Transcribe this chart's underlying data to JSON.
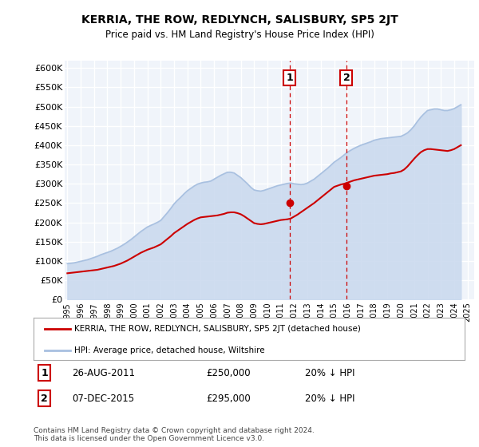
{
  "title": "KERRIA, THE ROW, REDLYNCH, SALISBURY, SP5 2JT",
  "subtitle": "Price paid vs. HM Land Registry's House Price Index (HPI)",
  "ylim": [
    0,
    620000
  ],
  "yticks": [
    0,
    50000,
    100000,
    150000,
    200000,
    250000,
    300000,
    350000,
    400000,
    450000,
    500000,
    550000,
    600000
  ],
  "ytick_labels": [
    "£0",
    "£50K",
    "£100K",
    "£150K",
    "£200K",
    "£250K",
    "£300K",
    "£350K",
    "£400K",
    "£450K",
    "£500K",
    "£550K",
    "£600K"
  ],
  "xlim_start": 1994.8,
  "xlim_end": 2025.5,
  "background_color": "#ffffff",
  "plot_bg_color": "#f0f4fa",
  "grid_color": "#ffffff",
  "hpi_fill_color": "#c8d8ee",
  "hpi_line_color": "#a8c0e0",
  "price_color": "#cc0000",
  "marker1_year": 2011.65,
  "marker2_year": 2015.92,
  "marker1_price": 250000,
  "marker2_price": 295000,
  "marker_dashed_color": "#cc0000",
  "legend_line1": "KERRIA, THE ROW, REDLYNCH, SALISBURY, SP5 2JT (detached house)",
  "legend_line2": "HPI: Average price, detached house, Wiltshire",
  "annot1_num": "1",
  "annot1_date": "26-AUG-2011",
  "annot1_price": "£250,000",
  "annot1_hpi": "20% ↓ HPI",
  "annot2_num": "2",
  "annot2_date": "07-DEC-2015",
  "annot2_price": "£295,000",
  "annot2_hpi": "20% ↓ HPI",
  "footer": "Contains HM Land Registry data © Crown copyright and database right 2024.\nThis data is licensed under the Open Government Licence v3.0.",
  "hpi_years": [
    1995.0,
    1995.25,
    1995.5,
    1995.75,
    1996.0,
    1996.25,
    1996.5,
    1996.75,
    1997.0,
    1997.25,
    1997.5,
    1997.75,
    1998.0,
    1998.25,
    1998.5,
    1998.75,
    1999.0,
    1999.25,
    1999.5,
    1999.75,
    2000.0,
    2000.25,
    2000.5,
    2000.75,
    2001.0,
    2001.25,
    2001.5,
    2001.75,
    2002.0,
    2002.25,
    2002.5,
    2002.75,
    2003.0,
    2003.25,
    2003.5,
    2003.75,
    2004.0,
    2004.25,
    2004.5,
    2004.75,
    2005.0,
    2005.25,
    2005.5,
    2005.75,
    2006.0,
    2006.25,
    2006.5,
    2006.75,
    2007.0,
    2007.25,
    2007.5,
    2007.75,
    2008.0,
    2008.25,
    2008.5,
    2008.75,
    2009.0,
    2009.25,
    2009.5,
    2009.75,
    2010.0,
    2010.25,
    2010.5,
    2010.75,
    2011.0,
    2011.25,
    2011.5,
    2011.75,
    2012.0,
    2012.25,
    2012.5,
    2012.75,
    2013.0,
    2013.25,
    2013.5,
    2013.75,
    2014.0,
    2014.25,
    2014.5,
    2014.75,
    2015.0,
    2015.25,
    2015.5,
    2015.75,
    2016.0,
    2016.25,
    2016.5,
    2016.75,
    2017.0,
    2017.25,
    2017.5,
    2017.75,
    2018.0,
    2018.25,
    2018.5,
    2018.75,
    2019.0,
    2019.25,
    2019.5,
    2019.75,
    2020.0,
    2020.25,
    2020.5,
    2020.75,
    2021.0,
    2021.25,
    2021.5,
    2021.75,
    2022.0,
    2022.25,
    2022.5,
    2022.75,
    2023.0,
    2023.25,
    2023.5,
    2023.75,
    2024.0,
    2024.25,
    2024.5
  ],
  "hpi_values": [
    93000,
    94000,
    95000,
    97000,
    99000,
    101000,
    103000,
    106000,
    109000,
    112000,
    116000,
    119000,
    122000,
    125000,
    129000,
    133000,
    138000,
    143000,
    149000,
    155000,
    162000,
    169000,
    176000,
    182000,
    188000,
    192000,
    196000,
    200000,
    205000,
    215000,
    225000,
    236000,
    248000,
    257000,
    265000,
    274000,
    282000,
    288000,
    294000,
    299000,
    302000,
    304000,
    305000,
    307000,
    312000,
    317000,
    322000,
    326000,
    330000,
    330000,
    328000,
    322000,
    316000,
    308000,
    300000,
    291000,
    284000,
    282000,
    281000,
    283000,
    286000,
    289000,
    292000,
    295000,
    297000,
    299000,
    301000,
    302000,
    300000,
    299000,
    298000,
    299000,
    302000,
    307000,
    312000,
    319000,
    326000,
    333000,
    340000,
    348000,
    356000,
    362000,
    368000,
    375000,
    382000,
    387000,
    392000,
    396000,
    400000,
    403000,
    406000,
    409000,
    413000,
    415000,
    417000,
    418000,
    419000,
    420000,
    421000,
    422000,
    423000,
    427000,
    432000,
    440000,
    450000,
    462000,
    473000,
    482000,
    490000,
    492000,
    494000,
    494000,
    492000,
    490000,
    490000,
    492000,
    495000,
    500000,
    505000
  ],
  "price_years": [
    1995.0,
    1995.25,
    1995.5,
    1995.75,
    1996.0,
    1996.25,
    1996.5,
    1996.75,
    1997.0,
    1997.25,
    1997.5,
    1997.75,
    1998.0,
    1998.25,
    1998.5,
    1998.75,
    1999.0,
    1999.25,
    1999.5,
    1999.75,
    2000.0,
    2000.25,
    2000.5,
    2000.75,
    2001.0,
    2001.25,
    2001.5,
    2001.75,
    2002.0,
    2002.25,
    2002.5,
    2002.75,
    2003.0,
    2003.25,
    2003.5,
    2003.75,
    2004.0,
    2004.25,
    2004.5,
    2004.75,
    2005.0,
    2005.25,
    2005.5,
    2005.75,
    2006.0,
    2006.25,
    2006.5,
    2006.75,
    2007.0,
    2007.25,
    2007.5,
    2007.75,
    2008.0,
    2008.25,
    2008.5,
    2008.75,
    2009.0,
    2009.25,
    2009.5,
    2009.75,
    2010.0,
    2010.25,
    2010.5,
    2010.75,
    2011.0,
    2011.25,
    2011.5,
    2011.75,
    2012.0,
    2012.25,
    2012.5,
    2012.75,
    2013.0,
    2013.25,
    2013.5,
    2013.75,
    2014.0,
    2014.25,
    2014.5,
    2014.75,
    2015.0,
    2015.25,
    2015.5,
    2015.75,
    2016.0,
    2016.25,
    2016.5,
    2016.75,
    2017.0,
    2017.25,
    2017.5,
    2017.75,
    2018.0,
    2018.25,
    2018.5,
    2018.75,
    2019.0,
    2019.25,
    2019.5,
    2019.75,
    2020.0,
    2020.25,
    2020.5,
    2020.75,
    2021.0,
    2021.25,
    2021.5,
    2021.75,
    2022.0,
    2022.25,
    2022.5,
    2022.75,
    2023.0,
    2023.25,
    2023.5,
    2023.75,
    2024.0,
    2024.25,
    2024.5
  ],
  "price_values": [
    68000,
    69000,
    70000,
    71000,
    72000,
    73000,
    74000,
    75000,
    76000,
    77000,
    79000,
    81000,
    83000,
    85000,
    87000,
    90000,
    93000,
    97000,
    101000,
    106000,
    111000,
    116000,
    121000,
    125000,
    129000,
    132000,
    135000,
    139000,
    143000,
    150000,
    157000,
    164000,
    172000,
    178000,
    184000,
    190000,
    196000,
    201000,
    206000,
    210000,
    213000,
    214000,
    215000,
    216000,
    217000,
    218000,
    220000,
    222000,
    225000,
    226000,
    226000,
    224000,
    221000,
    216000,
    210000,
    204000,
    198000,
    196000,
    195000,
    196000,
    198000,
    200000,
    202000,
    204000,
    206000,
    207000,
    208000,
    210000,
    215000,
    220000,
    226000,
    232000,
    238000,
    244000,
    250000,
    257000,
    264000,
    271000,
    278000,
    285000,
    292000,
    295000,
    298000,
    300000,
    303000,
    306000,
    309000,
    311000,
    313000,
    315000,
    317000,
    319000,
    321000,
    322000,
    323000,
    324000,
    325000,
    327000,
    328000,
    330000,
    332000,
    337000,
    345000,
    355000,
    365000,
    374000,
    382000,
    387000,
    390000,
    390000,
    389000,
    388000,
    387000,
    386000,
    385000,
    387000,
    390000,
    395000,
    400000
  ]
}
